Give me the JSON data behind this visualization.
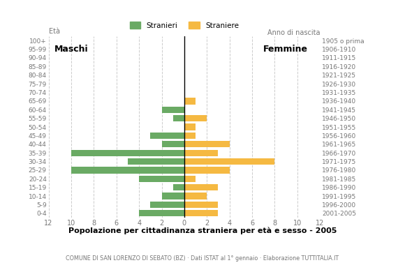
{
  "age_groups": [
    "100+",
    "95-99",
    "90-94",
    "85-89",
    "80-84",
    "75-79",
    "70-74",
    "65-69",
    "60-64",
    "55-59",
    "50-54",
    "45-49",
    "40-44",
    "35-39",
    "30-34",
    "25-29",
    "20-24",
    "15-19",
    "10-14",
    "5-9",
    "0-4"
  ],
  "birth_years": [
    "1905 o prima",
    "1906-1910",
    "1911-1915",
    "1916-1920",
    "1921-1925",
    "1926-1930",
    "1931-1935",
    "1936-1940",
    "1941-1945",
    "1946-1950",
    "1951-1955",
    "1956-1960",
    "1961-1965",
    "1966-1970",
    "1971-1975",
    "1976-1980",
    "1981-1985",
    "1986-1990",
    "1991-1995",
    "1996-2000",
    "2001-2005"
  ],
  "males": [
    0,
    0,
    0,
    0,
    0,
    0,
    0,
    0,
    2,
    1,
    0,
    3,
    2,
    10,
    5,
    10,
    4,
    1,
    2,
    3,
    4
  ],
  "females": [
    0,
    0,
    0,
    0,
    0,
    0,
    0,
    1,
    0,
    2,
    1,
    1,
    4,
    3,
    8,
    4,
    1,
    3,
    2,
    3,
    3
  ],
  "male_color": "#6aaa64",
  "female_color": "#f5b942",
  "title": "Popolazione per cittadinanza straniera per età e sesso - 2005",
  "subtitle": "COMUNE DI SAN LORENZO DI SEBATO (BZ) · Dati ISTAT al 1° gennaio · Elaborazione TUTTITALIA.IT",
  "xlabel_left": "Maschi",
  "xlabel_right": "Femmine",
  "ylabel": "Età",
  "ylabel_right": "Anno di nascita",
  "legend_male": "Stranieri",
  "legend_female": "Straniere",
  "xlim": 12,
  "background_color": "#ffffff",
  "grid_color": "#cccccc"
}
